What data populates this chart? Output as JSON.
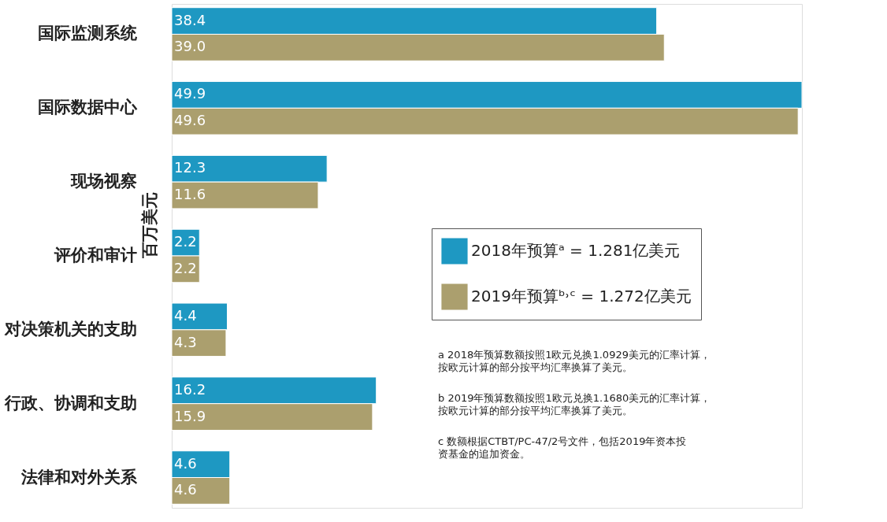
{
  "chart_data": {
    "type": "bar",
    "orientation": "horizontal",
    "ylabel": "百万美元",
    "categories": [
      "国际监测系统",
      "国际数据中心",
      "现场视察",
      "评价和审计",
      "对决策机关的支助",
      "行政、协调和支助",
      "法律和对外关系"
    ],
    "series": [
      {
        "name": "2018年预算ᵃ   = 1.281亿美元",
        "color": "#1e98c2",
        "values": [
          38.4,
          49.9,
          12.3,
          2.2,
          4.4,
          16.2,
          4.6
        ],
        "value_labels": [
          "38.4",
          "49.9",
          "12.3",
          "2.2",
          "4.4",
          "16.2",
          "4.6"
        ]
      },
      {
        "name": "2019年预算ᵇ˒ᶜ = 1.272亿美元",
        "color": "#ab9f6e",
        "values": [
          39.0,
          49.6,
          11.6,
          2.2,
          4.3,
          15.9,
          4.6
        ],
        "value_labels": [
          "39.0",
          "49.6",
          "11.6",
          "2.2",
          "4.3",
          "15.9",
          "4.6"
        ]
      }
    ],
    "legend": "bottom right",
    "grid": false,
    "tick_labels": "y",
    "annotations": [
      "a  2018年预算数额按照1欧元兑换1.0929美元的汇率计算，按欧元计算的部分按平均汇率换算了美元。",
      "b  2019年预算数额按照1欧元兑换1.1680美元的汇率计算，按欧元计算的部分按平均汇率换算了美元。",
      "c  数额根据CTBT/PC-47/2号文件，包括2019年资本投资基金的追加资金。"
    ]
  }
}
